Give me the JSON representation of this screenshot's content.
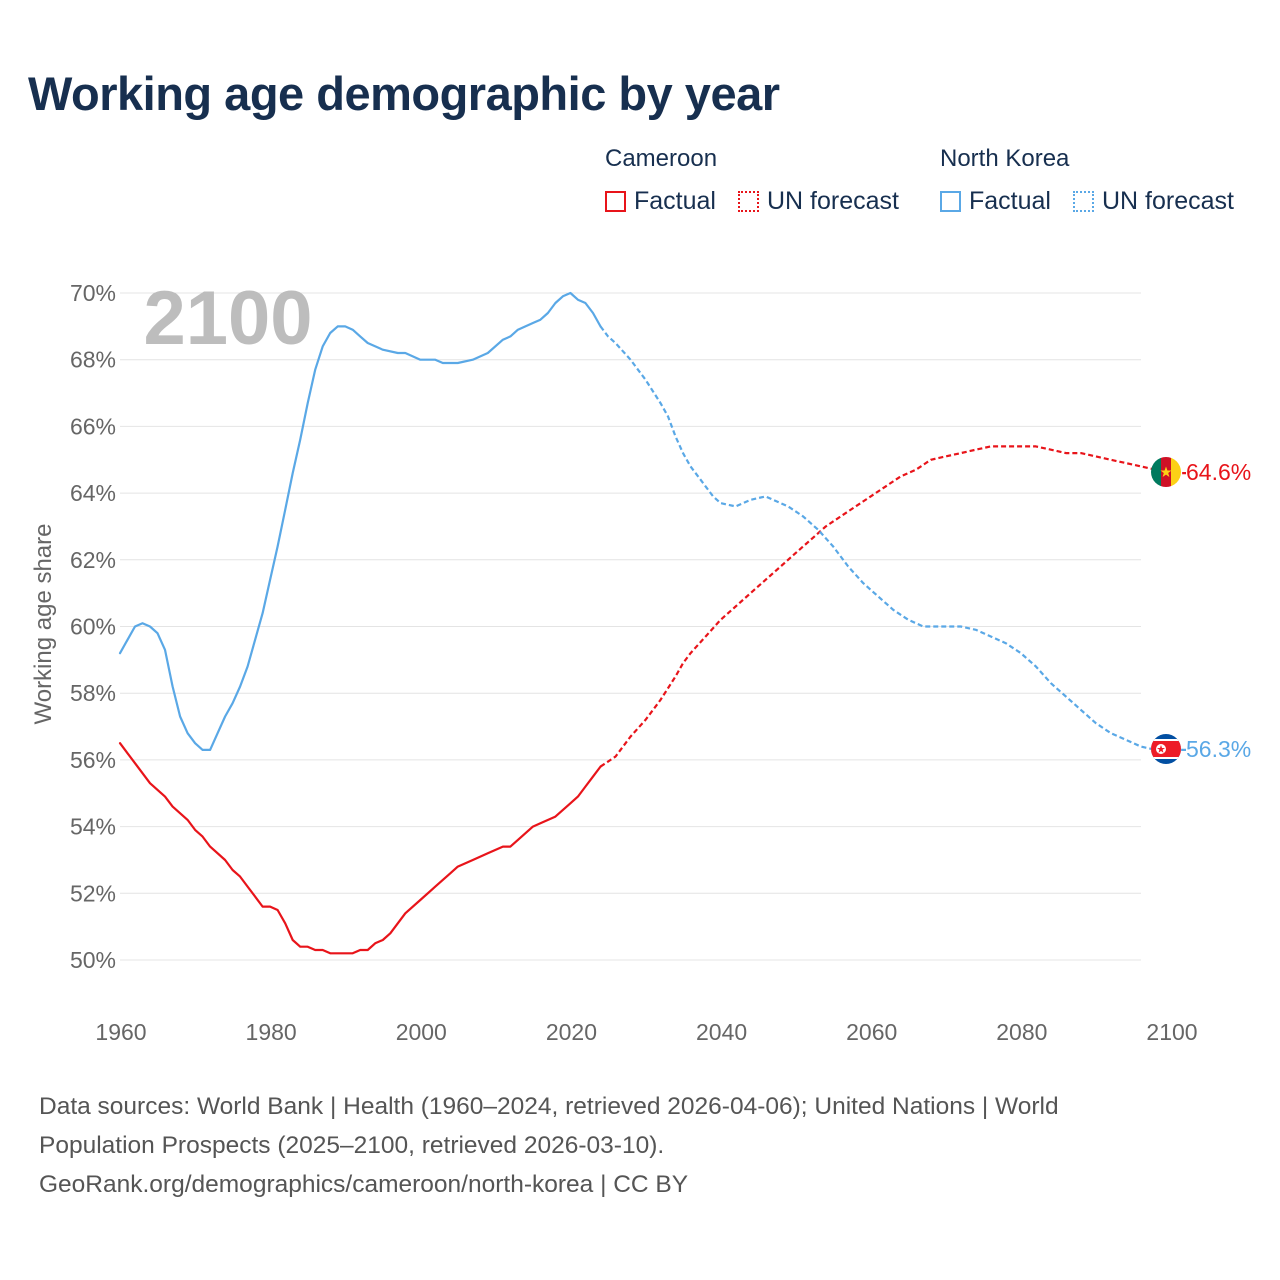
{
  "title": "Working age demographic by year",
  "legend": {
    "groups": [
      {
        "country": "Cameroon",
        "color": "#e8141a",
        "factual_label": "Factual",
        "forecast_label": "UN forecast"
      },
      {
        "country": "North Korea",
        "color": "#5aa8e6",
        "factual_label": "Factual",
        "forecast_label": "UN forecast"
      }
    ]
  },
  "chart_data": {
    "type": "line",
    "title": "Working age demographic by year",
    "xlabel": "",
    "ylabel": "Working age share",
    "xlim": [
      1960,
      2100
    ],
    "ylim": [
      49.5,
      70.3
    ],
    "x_ticks": [
      1960,
      1980,
      2000,
      2020,
      2040,
      2060,
      2080,
      2100
    ],
    "y_ticks": [
      50,
      52,
      54,
      56,
      58,
      60,
      62,
      64,
      66,
      68,
      70
    ],
    "y_tick_suffix": "%",
    "grid": true,
    "watermark_year": "2100",
    "forecast_start": 2024,
    "series": [
      {
        "name": "Cameroon",
        "color": "#e8141a",
        "flag": "cameroon-flag",
        "end_label": "64.6%",
        "points": [
          [
            1960,
            56.5
          ],
          [
            1962,
            55.9
          ],
          [
            1964,
            55.3
          ],
          [
            1966,
            54.9
          ],
          [
            1967,
            54.6
          ],
          [
            1969,
            54.2
          ],
          [
            1970,
            53.9
          ],
          [
            1971,
            53.7
          ],
          [
            1972,
            53.4
          ],
          [
            1974,
            53.0
          ],
          [
            1975,
            52.7
          ],
          [
            1976,
            52.5
          ],
          [
            1977,
            52.2
          ],
          [
            1979,
            51.6
          ],
          [
            1980,
            51.6
          ],
          [
            1981,
            51.5
          ],
          [
            1982,
            51.1
          ],
          [
            1983,
            50.6
          ],
          [
            1984,
            50.4
          ],
          [
            1985,
            50.4
          ],
          [
            1986,
            50.3
          ],
          [
            1987,
            50.3
          ],
          [
            1988,
            50.2
          ],
          [
            1990,
            50.2
          ],
          [
            1991,
            50.2
          ],
          [
            1992,
            50.3
          ],
          [
            1993,
            50.3
          ],
          [
            1994,
            50.5
          ],
          [
            1995,
            50.6
          ],
          [
            1996,
            50.8
          ],
          [
            1997,
            51.1
          ],
          [
            1998,
            51.4
          ],
          [
            2000,
            51.8
          ],
          [
            2002,
            52.2
          ],
          [
            2004,
            52.6
          ],
          [
            2005,
            52.8
          ],
          [
            2007,
            53.0
          ],
          [
            2009,
            53.2
          ],
          [
            2011,
            53.4
          ],
          [
            2012,
            53.4
          ],
          [
            2013,
            53.6
          ],
          [
            2015,
            54.0
          ],
          [
            2016,
            54.1
          ],
          [
            2018,
            54.3
          ],
          [
            2020,
            54.7
          ],
          [
            2021,
            54.9
          ],
          [
            2022,
            55.2
          ],
          [
            2023,
            55.5
          ],
          [
            2024,
            55.8
          ],
          [
            2026,
            56.1
          ],
          [
            2028,
            56.7
          ],
          [
            2030,
            57.2
          ],
          [
            2032,
            57.8
          ],
          [
            2034,
            58.5
          ],
          [
            2035,
            58.9
          ],
          [
            2036,
            59.2
          ],
          [
            2038,
            59.7
          ],
          [
            2040,
            60.2
          ],
          [
            2042,
            60.6
          ],
          [
            2044,
            61.0
          ],
          [
            2046,
            61.4
          ],
          [
            2048,
            61.8
          ],
          [
            2050,
            62.2
          ],
          [
            2052,
            62.6
          ],
          [
            2054,
            63.0
          ],
          [
            2056,
            63.3
          ],
          [
            2058,
            63.6
          ],
          [
            2060,
            63.9
          ],
          [
            2062,
            64.2
          ],
          [
            2064,
            64.5
          ],
          [
            2066,
            64.7
          ],
          [
            2068,
            65.0
          ],
          [
            2070,
            65.1
          ],
          [
            2072,
            65.2
          ],
          [
            2074,
            65.3
          ],
          [
            2076,
            65.4
          ],
          [
            2078,
            65.4
          ],
          [
            2082,
            65.4
          ],
          [
            2084,
            65.3
          ],
          [
            2086,
            65.2
          ],
          [
            2088,
            65.2
          ],
          [
            2090,
            65.1
          ],
          [
            2092,
            65.0
          ],
          [
            2094,
            64.9
          ],
          [
            2096,
            64.8
          ],
          [
            2098,
            64.7
          ],
          [
            2100,
            64.6
          ],
          [
            2102,
            64.6
          ]
        ]
      },
      {
        "name": "North Korea",
        "color": "#5aa8e6",
        "flag": "north-korea-flag",
        "end_label": "56.3%",
        "points": [
          [
            1960,
            59.2
          ],
          [
            1961,
            59.6
          ],
          [
            1962,
            60.0
          ],
          [
            1963,
            60.1
          ],
          [
            1964,
            60.0
          ],
          [
            1965,
            59.8
          ],
          [
            1966,
            59.3
          ],
          [
            1967,
            58.2
          ],
          [
            1968,
            57.3
          ],
          [
            1969,
            56.8
          ],
          [
            1970,
            56.5
          ],
          [
            1971,
            56.3
          ],
          [
            1972,
            56.3
          ],
          [
            1973,
            56.8
          ],
          [
            1974,
            57.3
          ],
          [
            1975,
            57.7
          ],
          [
            1976,
            58.2
          ],
          [
            1977,
            58.8
          ],
          [
            1978,
            59.6
          ],
          [
            1979,
            60.4
          ],
          [
            1980,
            61.4
          ],
          [
            1981,
            62.4
          ],
          [
            1982,
            63.5
          ],
          [
            1983,
            64.6
          ],
          [
            1984,
            65.6
          ],
          [
            1985,
            66.7
          ],
          [
            1986,
            67.7
          ],
          [
            1987,
            68.4
          ],
          [
            1988,
            68.8
          ],
          [
            1989,
            69.0
          ],
          [
            1990,
            69.0
          ],
          [
            1991,
            68.9
          ],
          [
            1992,
            68.7
          ],
          [
            1993,
            68.5
          ],
          [
            1995,
            68.3
          ],
          [
            1997,
            68.2
          ],
          [
            1998,
            68.2
          ],
          [
            2000,
            68.0
          ],
          [
            2002,
            68.0
          ],
          [
            2003,
            67.9
          ],
          [
            2005,
            67.9
          ],
          [
            2007,
            68.0
          ],
          [
            2009,
            68.2
          ],
          [
            2011,
            68.6
          ],
          [
            2012,
            68.7
          ],
          [
            2013,
            68.9
          ],
          [
            2015,
            69.1
          ],
          [
            2016,
            69.2
          ],
          [
            2017,
            69.4
          ],
          [
            2018,
            69.7
          ],
          [
            2019,
            69.9
          ],
          [
            2020,
            70.0
          ],
          [
            2021,
            69.8
          ],
          [
            2022,
            69.7
          ],
          [
            2023,
            69.4
          ],
          [
            2024,
            69.0
          ],
          [
            2025,
            68.7
          ],
          [
            2026,
            68.5
          ],
          [
            2028,
            68.0
          ],
          [
            2030,
            67.4
          ],
          [
            2032,
            66.7
          ],
          [
            2033,
            66.3
          ],
          [
            2034,
            65.7
          ],
          [
            2035,
            65.2
          ],
          [
            2036,
            64.8
          ],
          [
            2038,
            64.2
          ],
          [
            2039,
            63.9
          ],
          [
            2040,
            63.7
          ],
          [
            2042,
            63.6
          ],
          [
            2044,
            63.8
          ],
          [
            2046,
            63.9
          ],
          [
            2047,
            63.8
          ],
          [
            2049,
            63.6
          ],
          [
            2051,
            63.3
          ],
          [
            2053,
            62.9
          ],
          [
            2055,
            62.4
          ],
          [
            2057,
            61.8
          ],
          [
            2059,
            61.3
          ],
          [
            2061,
            60.9
          ],
          [
            2063,
            60.5
          ],
          [
            2065,
            60.2
          ],
          [
            2067,
            60.0
          ],
          [
            2070,
            60.0
          ],
          [
            2072,
            60.0
          ],
          [
            2074,
            59.9
          ],
          [
            2076,
            59.7
          ],
          [
            2078,
            59.5
          ],
          [
            2080,
            59.2
          ],
          [
            2082,
            58.8
          ],
          [
            2084,
            58.3
          ],
          [
            2086,
            57.9
          ],
          [
            2088,
            57.5
          ],
          [
            2090,
            57.1
          ],
          [
            2092,
            56.8
          ],
          [
            2094,
            56.6
          ],
          [
            2096,
            56.4
          ],
          [
            2098,
            56.3
          ],
          [
            2102,
            56.3
          ]
        ]
      }
    ]
  },
  "footer": {
    "line1": "Data sources: World Bank | Health (1960–2024, retrieved 2026-04-06); United Nations | World",
    "line2": "Population Prospects (2025–2100, retrieved 2026-03-10).",
    "line3": "GeoRank.org/demographics/cameroon/north-korea | CC BY"
  }
}
